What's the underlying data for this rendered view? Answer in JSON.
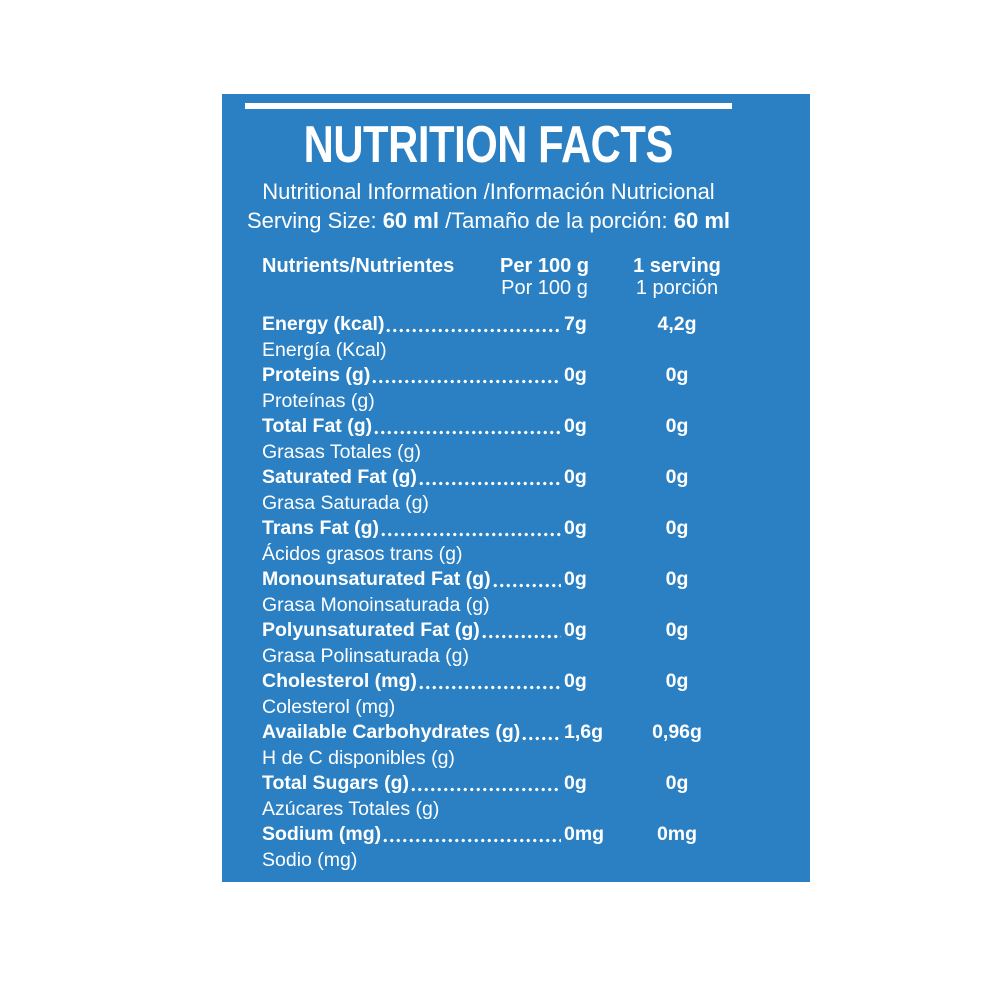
{
  "panel": {
    "title": "NUTRITION FACTS",
    "subtitle": "Nutritional Information /Información Nutricional",
    "serving": {
      "prefix": "Serving Size: ",
      "size_en": "60 ml",
      "middle": " /Tamaño de la porción: ",
      "size_es": "60 ml"
    },
    "columns": {
      "nutrients": "Nutrients/Nutrientes",
      "per100_line1": "Per 100 g",
      "per100_line2": "Por 100 g",
      "serving_line1": "1 serving",
      "serving_line2": "1 porción"
    },
    "colors": {
      "panel_background": "#2b80c3",
      "text": "#ffffff"
    },
    "rows": [
      {
        "name_en": "Energy (kcal)",
        "name_es": "Energía (Kcal)",
        "per100": "7g",
        "serving": "4,2g"
      },
      {
        "name_en": "Proteins (g)",
        "name_es": "Proteínas (g)",
        "per100": "0g",
        "serving": "0g"
      },
      {
        "name_en": "Total Fat (g)",
        "name_es": "Grasas Totales (g)",
        "per100": "0g",
        "serving": "0g"
      },
      {
        "name_en": "Saturated Fat (g)",
        "name_es": "Grasa Saturada (g)",
        "per100": "0g",
        "serving": "0g"
      },
      {
        "name_en": "Trans Fat (g)",
        "name_es": "Ácidos grasos trans (g)",
        "per100": "0g",
        "serving": "0g"
      },
      {
        "name_en": "Monounsaturated Fat (g)",
        "name_es": "Grasa Monoinsaturada (g)",
        "per100": "0g",
        "serving": "0g"
      },
      {
        "name_en": "Polyunsaturated Fat (g)",
        "name_es": "Grasa Polinsaturada (g)",
        "per100": "0g",
        "serving": "0g"
      },
      {
        "name_en": "Cholesterol (mg)",
        "name_es": "Colesterol (mg)",
        "per100": "0g",
        "serving": "0g"
      },
      {
        "name_en": "Available Carbohydrates (g)",
        "name_es": "H de C disponibles (g)",
        "per100": "1,6g",
        "serving": "0,96g"
      },
      {
        "name_en": "Total Sugars (g)",
        "name_es": "Azúcares Totales (g)",
        "per100": "0g",
        "serving": "0g"
      },
      {
        "name_en": "Sodium (mg)",
        "name_es": "Sodio (mg)",
        "per100": "0mg",
        "serving": "0mg"
      }
    ]
  }
}
